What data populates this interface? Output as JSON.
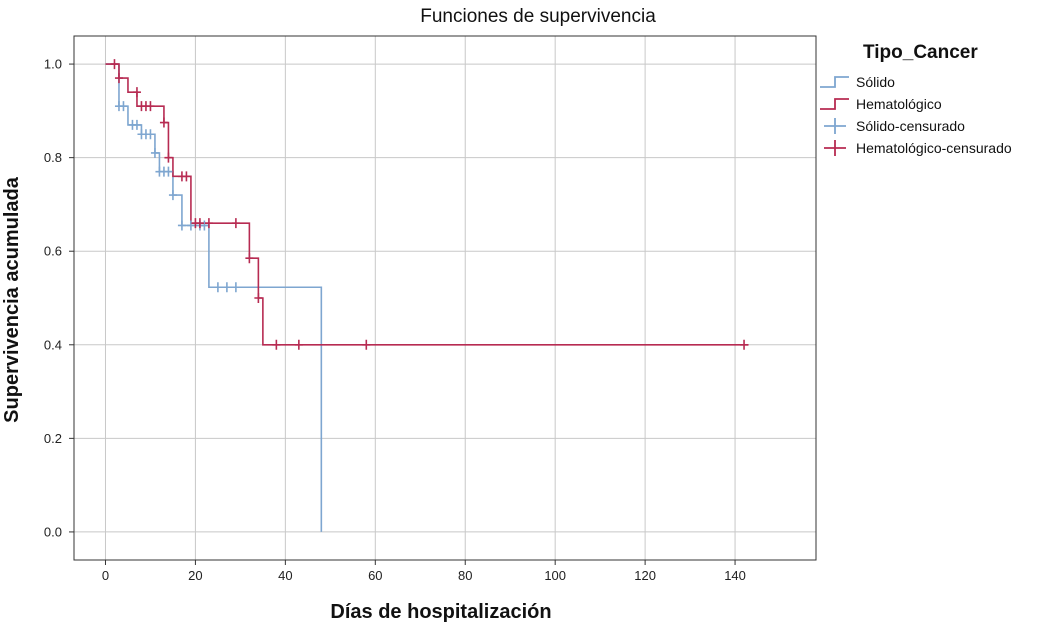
{
  "chart_data": {
    "type": "line",
    "subtype": "kaplan-meier survival step",
    "title": "Funciones de supervivencia",
    "xlabel": "Días de hospitalización",
    "ylabel": "Supervivencia acumulada",
    "xlim": [
      -7,
      158
    ],
    "ylim": [
      -0.06,
      1.06
    ],
    "x_ticks": [
      0,
      20,
      40,
      60,
      80,
      100,
      120,
      140
    ],
    "y_ticks": [
      0.0,
      0.2,
      0.4,
      0.6,
      0.8,
      1.0
    ],
    "y_tick_labels": [
      "0.0",
      "0.2",
      "0.4",
      "0.6",
      "0.8",
      "1.0"
    ],
    "grid": true,
    "legend": {
      "title": "Tipo_Cancer",
      "placement": "right",
      "entries": [
        "Sólido",
        "Hematológico",
        "Sólido-censurado",
        "Hematológico-censurado"
      ]
    },
    "series": [
      {
        "name": "Sólido",
        "color": "#7ea6d0",
        "steps": [
          {
            "x": 0,
            "y": 1.0
          },
          {
            "x": 3,
            "y": 0.91
          },
          {
            "x": 5,
            "y": 0.87
          },
          {
            "x": 8,
            "y": 0.85
          },
          {
            "x": 11,
            "y": 0.81
          },
          {
            "x": 12,
            "y": 0.77
          },
          {
            "x": 15,
            "y": 0.72
          },
          {
            "x": 17,
            "y": 0.655
          },
          {
            "x": 23,
            "y": 0.523
          },
          {
            "x": 48,
            "y": 0.0
          }
        ],
        "censored": [
          {
            "x": 3,
            "y": 0.91
          },
          {
            "x": 4,
            "y": 0.91
          },
          {
            "x": 6,
            "y": 0.87
          },
          {
            "x": 7,
            "y": 0.87
          },
          {
            "x": 8,
            "y": 0.85
          },
          {
            "x": 9,
            "y": 0.85
          },
          {
            "x": 10,
            "y": 0.85
          },
          {
            "x": 11,
            "y": 0.81
          },
          {
            "x": 12,
            "y": 0.77
          },
          {
            "x": 13,
            "y": 0.77
          },
          {
            "x": 14,
            "y": 0.77
          },
          {
            "x": 15,
            "y": 0.72
          },
          {
            "x": 17,
            "y": 0.655
          },
          {
            "x": 19,
            "y": 0.655
          },
          {
            "x": 21,
            "y": 0.655
          },
          {
            "x": 22,
            "y": 0.655
          },
          {
            "x": 25,
            "y": 0.523
          },
          {
            "x": 27,
            "y": 0.523
          },
          {
            "x": 29,
            "y": 0.523
          }
        ]
      },
      {
        "name": "Hematológico",
        "color": "#b72b52",
        "steps": [
          {
            "x": 0,
            "y": 1.0
          },
          {
            "x": 2,
            "y": 1.0
          },
          {
            "x": 3,
            "y": 0.97
          },
          {
            "x": 5,
            "y": 0.94
          },
          {
            "x": 7,
            "y": 0.91
          },
          {
            "x": 13,
            "y": 0.875
          },
          {
            "x": 14,
            "y": 0.8
          },
          {
            "x": 15,
            "y": 0.76
          },
          {
            "x": 19,
            "y": 0.66
          },
          {
            "x": 32,
            "y": 0.585
          },
          {
            "x": 34,
            "y": 0.5
          },
          {
            "x": 35,
            "y": 0.4
          }
        ],
        "end_x": 143,
        "censored": [
          {
            "x": 2,
            "y": 1.0
          },
          {
            "x": 3,
            "y": 0.97
          },
          {
            "x": 7,
            "y": 0.94
          },
          {
            "x": 8,
            "y": 0.91
          },
          {
            "x": 9,
            "y": 0.91
          },
          {
            "x": 10,
            "y": 0.91
          },
          {
            "x": 13,
            "y": 0.875
          },
          {
            "x": 14,
            "y": 0.8
          },
          {
            "x": 17,
            "y": 0.76
          },
          {
            "x": 18,
            "y": 0.76
          },
          {
            "x": 20,
            "y": 0.66
          },
          {
            "x": 21,
            "y": 0.66
          },
          {
            "x": 23,
            "y": 0.66
          },
          {
            "x": 29,
            "y": 0.66
          },
          {
            "x": 32,
            "y": 0.585
          },
          {
            "x": 34,
            "y": 0.5
          },
          {
            "x": 38,
            "y": 0.4
          },
          {
            "x": 43,
            "y": 0.4
          },
          {
            "x": 58,
            "y": 0.4
          },
          {
            "x": 142,
            "y": 0.4
          }
        ]
      }
    ]
  }
}
